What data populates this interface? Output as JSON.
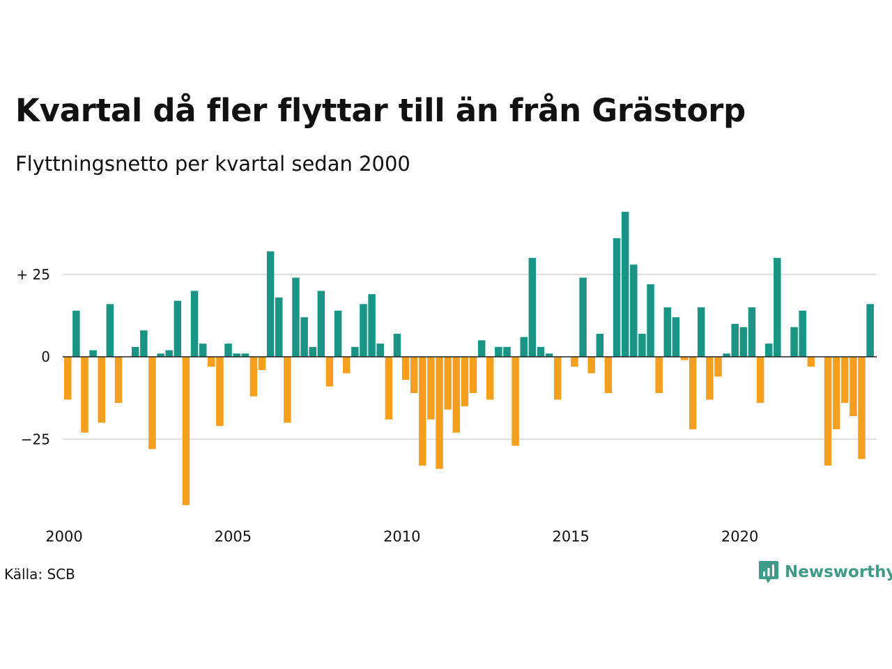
{
  "header": {
    "title": "Kvartal då fler flyttar till än från Grästorp",
    "subtitle": "Flyttningsnetto per kvartal sedan 2000"
  },
  "footer": {
    "source": "Källa: SCB",
    "brand": "Newsworthy",
    "brand_icon": "bar-chart-speech-bubble-icon"
  },
  "colors": {
    "positive": "#1a9585",
    "negative": "#f59f1f",
    "grid": "#dddddd",
    "zero_line": "#222222",
    "brand": "#3f9a88"
  },
  "chart_data": {
    "type": "bar",
    "title": "Kvartal då fler flyttar till än från Grästorp",
    "subtitle": "Flyttningsnetto per kvartal sedan 2000",
    "x_start_year": 2000,
    "periods_per_year": 4,
    "x_ticks": [
      "2000",
      "2005",
      "2010",
      "2015",
      "2020"
    ],
    "y_ticks": [
      {
        "value": 25,
        "label": "+ 25"
      },
      {
        "value": 0,
        "label": "0"
      },
      {
        "value": -25,
        "label": "−25"
      }
    ],
    "ylim": [
      -45,
      44
    ],
    "grid": true,
    "values": [
      -13,
      14,
      -23,
      2,
      -20,
      16,
      -14,
      0,
      3,
      8,
      -28,
      1,
      2,
      17,
      -45,
      20,
      4,
      -3,
      -21,
      4,
      1,
      1,
      -12,
      -4,
      32,
      18,
      -20,
      24,
      12,
      3,
      20,
      -9,
      14,
      -5,
      3,
      16,
      19,
      4,
      -19,
      7,
      -7,
      -11,
      -33,
      -19,
      -34,
      -16,
      -23,
      -15,
      -11,
      5,
      -13,
      3,
      3,
      -27,
      6,
      30,
      3,
      1,
      -13,
      0,
      -3,
      24,
      -5,
      7,
      -11,
      36,
      44,
      28,
      7,
      22,
      -11,
      15,
      12,
      -1,
      -22,
      15,
      -13,
      -6,
      1,
      10,
      9,
      15,
      -14,
      4,
      30,
      0,
      9,
      14,
      -3,
      0,
      -33,
      -22,
      -14,
      -18,
      -31,
      16
    ]
  }
}
